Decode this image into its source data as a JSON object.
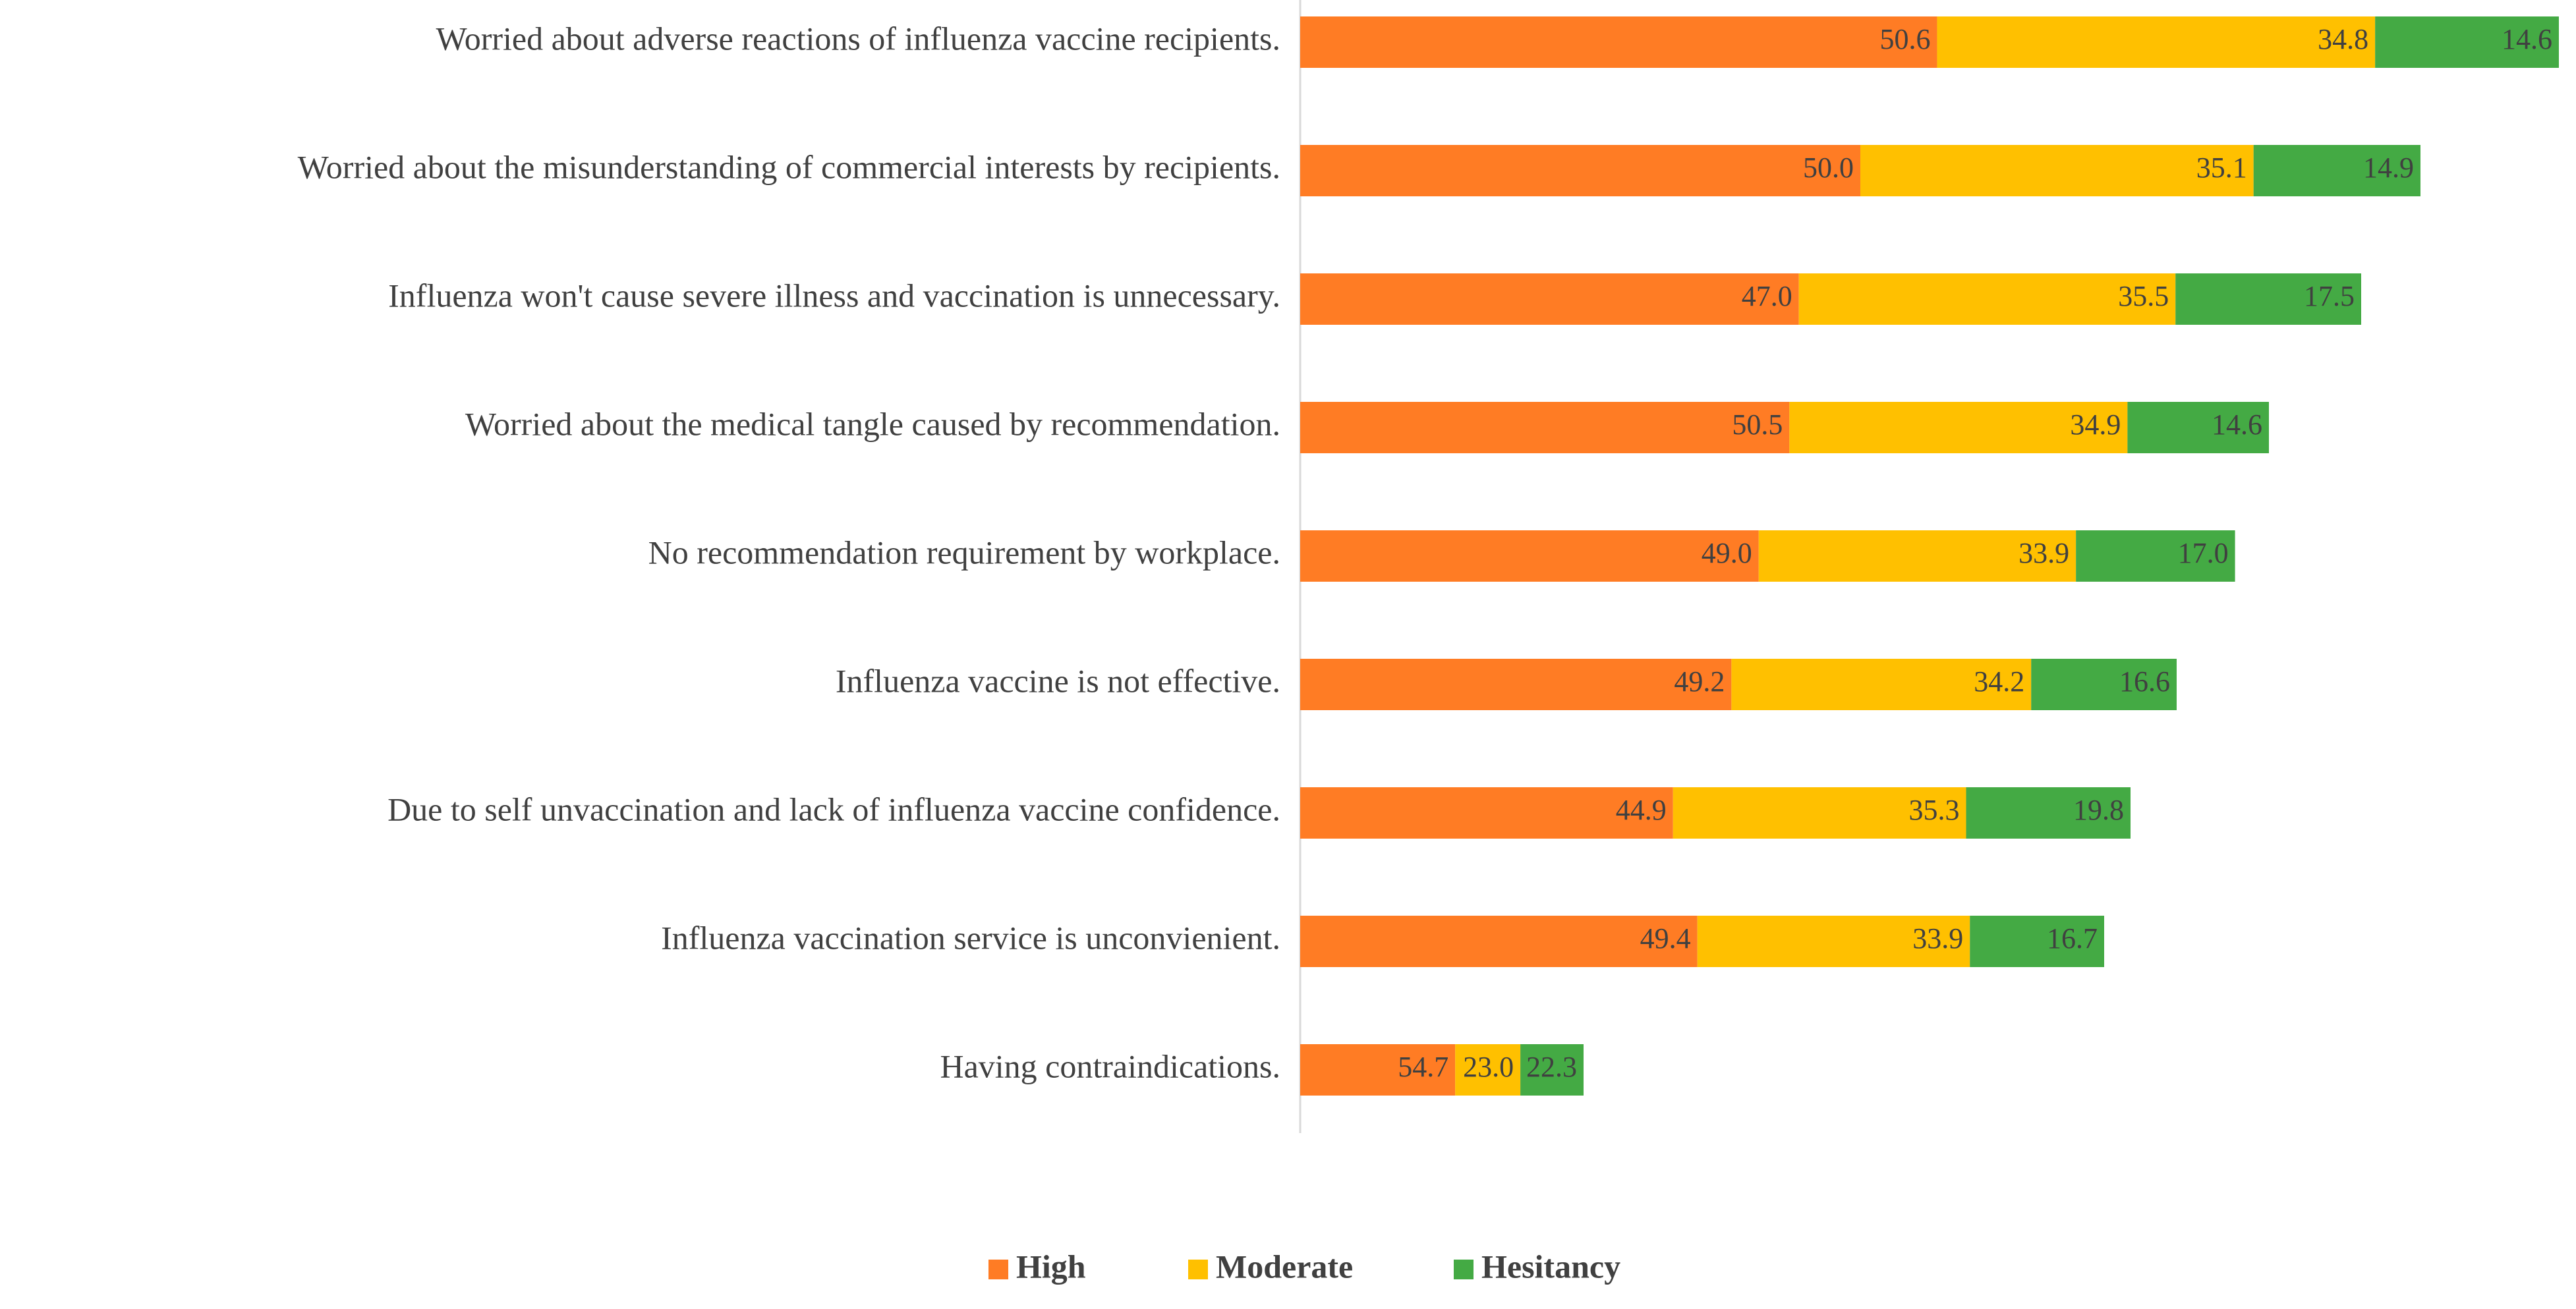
{
  "chart_data": {
    "type": "bar",
    "orientation": "horizontal",
    "stacked": true,
    "categories": [
      "Worried about adverse reactions of influenza vaccine recipients.",
      "Worried about the misunderstanding of commercial interests by recipients.",
      "Influenza won't cause severe illness and vaccination is unnecessary.",
      "Worried about the medical tangle caused by recommendation.",
      "No recommendation requirement by workplace.",
      "Influenza vaccine is not effective.",
      "Due to self unvaccination and lack of influenza vaccine confidence.",
      "Influenza vaccination service is unconvienient.",
      "Having contraindications."
    ],
    "series": [
      {
        "name": "High",
        "color": "#FF7C24",
        "values": [
          50.6,
          50.0,
          47.0,
          50.5,
          49.0,
          49.2,
          44.9,
          49.4,
          54.7
        ]
      },
      {
        "name": "Moderate",
        "color": "#FFC000",
        "values": [
          34.8,
          35.1,
          35.5,
          34.9,
          33.9,
          34.2,
          35.3,
          33.9,
          23.0
        ]
      },
      {
        "name": "Hesitancy",
        "color": "#44AA44",
        "values": [
          14.6,
          14.9,
          17.5,
          14.6,
          17.0,
          16.6,
          19.8,
          16.7,
          22.3
        ]
      }
    ],
    "data_labels": [
      [
        "50.6",
        "34.8",
        "14.6"
      ],
      [
        "50.0",
        "35.1",
        "14.9"
      ],
      [
        "47.0",
        "35.5",
        "17.5"
      ],
      [
        "50.5",
        "34.9",
        "14.6"
      ],
      [
        "49.0",
        "33.9",
        "17.0"
      ],
      [
        "49.2",
        "34.2",
        "16.6"
      ],
      [
        "44.9",
        "35.3",
        "19.8"
      ],
      [
        "49.4",
        "33.9",
        "16.7"
      ],
      [
        "54.7",
        "23.0",
        "22.3"
      ]
    ],
    "row_totals": [
      1.91,
      1.7,
      1.61,
      1.47,
      1.42,
      1.33,
      1.26,
      1.22,
      0.43
    ],
    "legend_position": "bottom",
    "grid": false
  }
}
